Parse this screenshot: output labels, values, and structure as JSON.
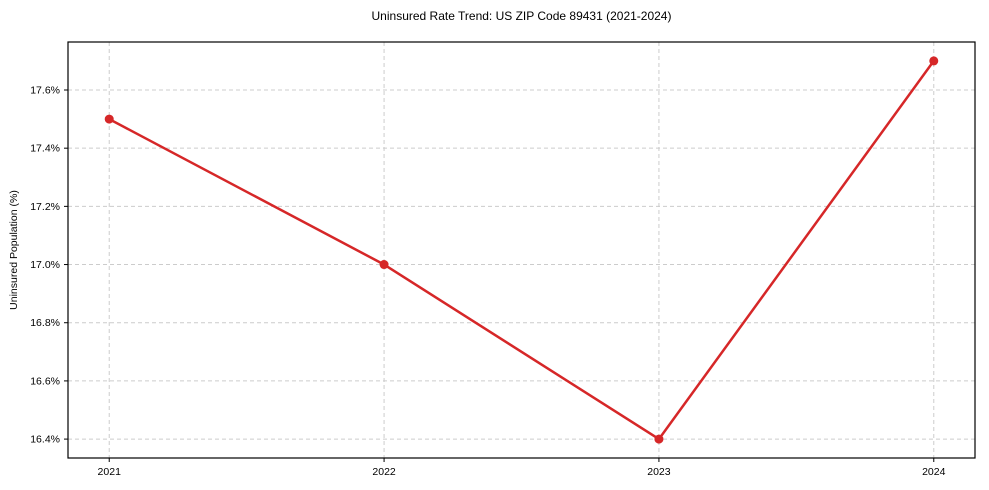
{
  "chart_data": {
    "type": "line",
    "title": "Uninsured Rate Trend: US ZIP Code 89431 (2021-2024)",
    "xlabel": "",
    "ylabel": "Uninsured Population (%)",
    "x": [
      2021,
      2022,
      2023,
      2024
    ],
    "series": [
      {
        "name": "Uninsured rate",
        "values": [
          17.5,
          17.0,
          16.4,
          17.7
        ]
      }
    ],
    "xticks": [
      2021,
      2022,
      2023,
      2024
    ],
    "xtick_labels": [
      "2021",
      "2022",
      "2023",
      "2024"
    ],
    "yticks": [
      16.4,
      16.6,
      16.8,
      17.0,
      17.2,
      17.4,
      17.6
    ],
    "ytick_labels": [
      "16.4%",
      "16.6%",
      "16.8%",
      "17.0%",
      "17.2%",
      "17.4%",
      "17.6%"
    ],
    "xlim": [
      2020.85,
      2024.15
    ],
    "ylim": [
      16.335,
      17.765
    ],
    "grid": true,
    "legend": null,
    "colors": {
      "line": "#d62728",
      "marker": "#d62728",
      "grid": "#cccccc",
      "spine": "#000000",
      "background": "#ffffff"
    }
  }
}
